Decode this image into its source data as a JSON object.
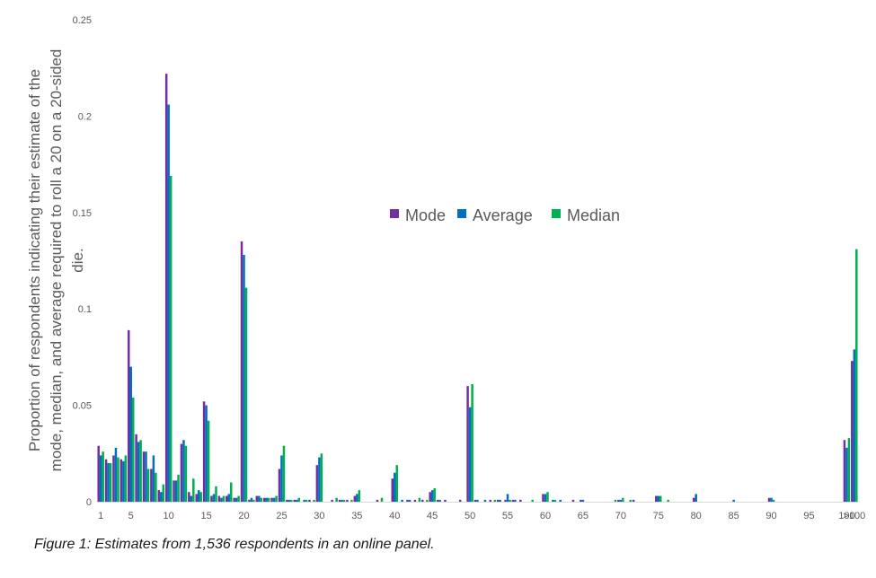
{
  "caption": "Figure 1: Estimates from 1,536 respondents in an online panel.",
  "chart_data": {
    "type": "bar",
    "title": "",
    "xlabel": "",
    "ylabel_lines": [
      "Proportion of respondents indicating their estimate of the",
      "mode, median, and average required to roll a 20 on a 20-sided",
      "die."
    ],
    "ylim": [
      0,
      0.25
    ],
    "y_ticks": [
      "0",
      "0.05",
      "0.1",
      "0.15",
      "0.2",
      "0.25"
    ],
    "legend_position": "center",
    "categories": [
      "1",
      "2",
      "3",
      "4",
      "5",
      "6",
      "7",
      "8",
      "9",
      "10",
      "11",
      "12",
      "13",
      "14",
      "15",
      "16",
      "17",
      "18",
      "19",
      "20",
      "21",
      "22",
      "23",
      "24",
      "25",
      "26",
      "27",
      "28",
      "29",
      "30",
      "31",
      "32",
      "33",
      "34",
      "35",
      "36",
      "37",
      "38",
      "39",
      "40",
      "41",
      "42",
      "43",
      "44",
      "45",
      "46",
      "47",
      "48",
      "49",
      "50",
      "51",
      "52",
      "53",
      "54",
      "55",
      "56",
      "57",
      "58",
      "59",
      "60",
      "61",
      "62",
      "63",
      "64",
      "65",
      "66",
      "67",
      "68",
      "69",
      "70",
      "71",
      "72",
      "73",
      "74",
      "75",
      "76",
      "77",
      "78",
      "79",
      "80",
      "81",
      "82",
      "83",
      "84",
      "85",
      "86",
      "87",
      "88",
      "89",
      "90",
      "91",
      "92",
      "93",
      "94",
      "95",
      "96",
      "97",
      "98",
      "99",
      "100",
      ">100"
    ],
    "x_tick_labels": [
      "1",
      "5",
      "10",
      "15",
      "20",
      "25",
      "30",
      "35",
      "40",
      "45",
      "50",
      "55",
      "60",
      "65",
      "70",
      "75",
      "80",
      "85",
      "90",
      "95",
      "100",
      ">100"
    ],
    "series": [
      {
        "name": "Mode",
        "color": "#7030a0",
        "values": [
          0.029,
          0.022,
          0.024,
          0.022,
          0.089,
          0.035,
          0.026,
          0.017,
          0.006,
          0.222,
          0.011,
          0.03,
          0.005,
          0.004,
          0.052,
          0.003,
          0.003,
          0.003,
          0.002,
          0.135,
          0.001,
          0.003,
          0.002,
          0.002,
          0.017,
          0.001,
          0.001,
          0.0,
          0.001,
          0.019,
          0.0,
          0.001,
          0.001,
          0.001,
          0.003,
          0.0,
          0.0,
          0.001,
          0.0,
          0.012,
          0.0,
          0.001,
          0.001,
          0.001,
          0.005,
          0.001,
          0.001,
          0.0,
          0.001,
          0.06,
          0.001,
          0.0,
          0.001,
          0.001,
          0.001,
          0.001,
          0.001,
          0.0,
          0.0,
          0.004,
          0.0,
          0.0,
          0.0,
          0.001,
          0.001,
          0.0,
          0.0,
          0.0,
          0.0,
          0.001,
          0.0,
          0.001,
          0.0,
          0.0,
          0.003,
          0.0,
          0.0,
          0.0,
          0.0,
          0.002,
          0.0,
          0.0,
          0.0,
          0.0,
          0.0,
          0.0,
          0.0,
          0.0,
          0.0,
          0.002,
          0.0,
          0.0,
          0.0,
          0.0,
          0.0,
          0.0,
          0.0,
          0.0,
          0.0,
          0.032,
          0.073
        ]
      },
      {
        "name": "Average",
        "color": "#0070c0",
        "values": [
          0.024,
          0.02,
          0.028,
          0.021,
          0.07,
          0.031,
          0.026,
          0.024,
          0.005,
          0.206,
          0.011,
          0.032,
          0.003,
          0.006,
          0.05,
          0.004,
          0.002,
          0.004,
          0.002,
          0.128,
          0.002,
          0.003,
          0.002,
          0.002,
          0.024,
          0.001,
          0.001,
          0.001,
          0.0,
          0.023,
          0.0,
          0.0,
          0.001,
          0.0,
          0.004,
          0.0,
          0.0,
          0.0,
          0.0,
          0.015,
          0.001,
          0.001,
          0.0,
          0.0,
          0.006,
          0.001,
          0.0,
          0.0,
          0.0,
          0.049,
          0.001,
          0.001,
          0.0,
          0.001,
          0.004,
          0.001,
          0.0,
          0.0,
          0.0,
          0.004,
          0.001,
          0.001,
          0.0,
          0.0,
          0.001,
          0.0,
          0.0,
          0.0,
          0.0,
          0.001,
          0.0,
          0.0,
          0.0,
          0.0,
          0.003,
          0.0,
          0.0,
          0.0,
          0.0,
          0.004,
          0.0,
          0.0,
          0.0,
          0.0,
          0.001,
          0.0,
          0.0,
          0.0,
          0.0,
          0.002,
          0.0,
          0.0,
          0.0,
          0.0,
          0.0,
          0.0,
          0.0,
          0.0,
          0.0,
          0.028,
          0.079
        ]
      },
      {
        "name": "Median",
        "color": "#00b050",
        "values": [
          0.026,
          0.02,
          0.023,
          0.024,
          0.054,
          0.032,
          0.017,
          0.015,
          0.009,
          0.169,
          0.014,
          0.029,
          0.012,
          0.005,
          0.042,
          0.008,
          0.003,
          0.01,
          0.003,
          0.111,
          0.001,
          0.002,
          0.002,
          0.003,
          0.029,
          0.001,
          0.002,
          0.001,
          0.001,
          0.025,
          0.0,
          0.002,
          0.001,
          0.001,
          0.006,
          0.0,
          0.0,
          0.002,
          0.0,
          0.019,
          0.0,
          0.0,
          0.002,
          0.001,
          0.007,
          0.0,
          0.0,
          0.0,
          0.0,
          0.061,
          0.0,
          0.0,
          0.001,
          0.0,
          0.001,
          0.0,
          0.0,
          0.001,
          0.0,
          0.005,
          0.001,
          0.0,
          0.0,
          0.0,
          0.0,
          0.0,
          0.0,
          0.0,
          0.001,
          0.002,
          0.001,
          0.0,
          0.0,
          0.0,
          0.003,
          0.001,
          0.0,
          0.0,
          0.0,
          0.0,
          0.0,
          0.0,
          0.0,
          0.0,
          0.0,
          0.0,
          0.0,
          0.0,
          0.0,
          0.001,
          0.0,
          0.0,
          0.0,
          0.0,
          0.0,
          0.0,
          0.0,
          0.0,
          0.0,
          0.033,
          0.131
        ]
      }
    ]
  }
}
